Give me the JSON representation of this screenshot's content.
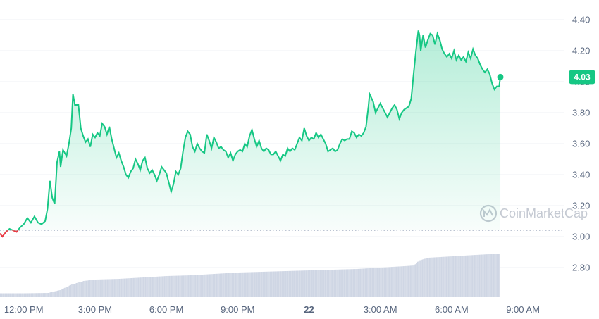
{
  "chart_data": {
    "type": "area",
    "y_ticks": [
      "4.40",
      "4.20",
      "4.00",
      "3.80",
      "3.60",
      "3.40",
      "3.20",
      "3.00",
      "2.80"
    ],
    "ylim": [
      2.6,
      4.5
    ],
    "x_ticks": [
      {
        "label": "12:00 PM",
        "t": 1.0
      },
      {
        "label": "3:00 PM",
        "t": 4.0
      },
      {
        "label": "6:00 PM",
        "t": 7.0
      },
      {
        "label": "9:00 PM",
        "t": 10.0
      },
      {
        "label": "22",
        "t": 13.0
      },
      {
        "label": "3:00 AM",
        "t": 16.0
      },
      {
        "label": "6:00 AM",
        "t": 19.0
      },
      {
        "label": "9:00 AM",
        "t": 22.0
      }
    ],
    "xlim": [
      0.0,
      25.2
    ],
    "baseline_price": 3.04,
    "current_price": "4.03",
    "colors": {
      "up": "#16c784",
      "down": "#ea3943",
      "volume": "#cfd6e4",
      "badge": "#16c784"
    },
    "price": [
      {
        "t": 0.0,
        "v": 3.02
      },
      {
        "t": 0.1,
        "v": 3.0
      },
      {
        "t": 0.25,
        "v": 3.03
      },
      {
        "t": 0.4,
        "v": 3.05
      },
      {
        "t": 0.55,
        "v": 3.04
      },
      {
        "t": 0.7,
        "v": 3.03
      },
      {
        "t": 0.85,
        "v": 3.06
      },
      {
        "t": 1.0,
        "v": 3.08
      },
      {
        "t": 1.15,
        "v": 3.12
      },
      {
        "t": 1.3,
        "v": 3.09
      },
      {
        "t": 1.45,
        "v": 3.13
      },
      {
        "t": 1.6,
        "v": 3.09
      },
      {
        "t": 1.75,
        "v": 3.08
      },
      {
        "t": 1.9,
        "v": 3.1
      },
      {
        "t": 2.0,
        "v": 3.18
      },
      {
        "t": 2.1,
        "v": 3.36
      },
      {
        "t": 2.2,
        "v": 3.25
      },
      {
        "t": 2.3,
        "v": 3.21
      },
      {
        "t": 2.4,
        "v": 3.48
      },
      {
        "t": 2.5,
        "v": 3.55
      },
      {
        "t": 2.55,
        "v": 3.45
      },
      {
        "t": 2.65,
        "v": 3.56
      },
      {
        "t": 2.8,
        "v": 3.52
      },
      {
        "t": 2.9,
        "v": 3.6
      },
      {
        "t": 3.0,
        "v": 3.7
      },
      {
        "t": 3.07,
        "v": 3.92
      },
      {
        "t": 3.15,
        "v": 3.85
      },
      {
        "t": 3.3,
        "v": 3.85
      },
      {
        "t": 3.4,
        "v": 3.7
      },
      {
        "t": 3.5,
        "v": 3.65
      },
      {
        "t": 3.6,
        "v": 3.61
      },
      {
        "t": 3.7,
        "v": 3.63
      },
      {
        "t": 3.8,
        "v": 3.58
      },
      {
        "t": 3.9,
        "v": 3.66
      },
      {
        "t": 4.0,
        "v": 3.64
      },
      {
        "t": 4.1,
        "v": 3.67
      },
      {
        "t": 4.2,
        "v": 3.65
      },
      {
        "t": 4.3,
        "v": 3.73
      },
      {
        "t": 4.4,
        "v": 3.71
      },
      {
        "t": 4.5,
        "v": 3.66
      },
      {
        "t": 4.6,
        "v": 3.71
      },
      {
        "t": 4.7,
        "v": 3.63
      },
      {
        "t": 4.8,
        "v": 3.57
      },
      {
        "t": 4.9,
        "v": 3.51
      },
      {
        "t": 5.0,
        "v": 3.54
      },
      {
        "t": 5.1,
        "v": 3.49
      },
      {
        "t": 5.2,
        "v": 3.45
      },
      {
        "t": 5.3,
        "v": 3.4
      },
      {
        "t": 5.4,
        "v": 3.38
      },
      {
        "t": 5.5,
        "v": 3.42
      },
      {
        "t": 5.6,
        "v": 3.44
      },
      {
        "t": 5.7,
        "v": 3.5
      },
      {
        "t": 5.8,
        "v": 3.47
      },
      {
        "t": 5.9,
        "v": 3.43
      },
      {
        "t": 6.0,
        "v": 3.49
      },
      {
        "t": 6.1,
        "v": 3.51
      },
      {
        "t": 6.2,
        "v": 3.44
      },
      {
        "t": 6.3,
        "v": 3.41
      },
      {
        "t": 6.4,
        "v": 3.43
      },
      {
        "t": 6.5,
        "v": 3.4
      },
      {
        "t": 6.6,
        "v": 3.36
      },
      {
        "t": 6.7,
        "v": 3.4
      },
      {
        "t": 6.8,
        "v": 3.45
      },
      {
        "t": 6.9,
        "v": 3.43
      },
      {
        "t": 7.0,
        "v": 3.41
      },
      {
        "t": 7.1,
        "v": 3.35
      },
      {
        "t": 7.2,
        "v": 3.29
      },
      {
        "t": 7.3,
        "v": 3.34
      },
      {
        "t": 7.4,
        "v": 3.42
      },
      {
        "t": 7.5,
        "v": 3.4
      },
      {
        "t": 7.6,
        "v": 3.44
      },
      {
        "t": 7.7,
        "v": 3.55
      },
      {
        "t": 7.8,
        "v": 3.64
      },
      {
        "t": 7.9,
        "v": 3.68
      },
      {
        "t": 8.0,
        "v": 3.66
      },
      {
        "t": 8.1,
        "v": 3.58
      },
      {
        "t": 8.2,
        "v": 3.55
      },
      {
        "t": 8.3,
        "v": 3.6
      },
      {
        "t": 8.4,
        "v": 3.57
      },
      {
        "t": 8.5,
        "v": 3.55
      },
      {
        "t": 8.6,
        "v": 3.54
      },
      {
        "t": 8.7,
        "v": 3.66
      },
      {
        "t": 8.8,
        "v": 3.62
      },
      {
        "t": 8.9,
        "v": 3.57
      },
      {
        "t": 9.0,
        "v": 3.64
      },
      {
        "t": 9.1,
        "v": 3.61
      },
      {
        "t": 9.2,
        "v": 3.57
      },
      {
        "t": 9.3,
        "v": 3.58
      },
      {
        "t": 9.4,
        "v": 3.56
      },
      {
        "t": 9.5,
        "v": 3.55
      },
      {
        "t": 9.6,
        "v": 3.51
      },
      {
        "t": 9.7,
        "v": 3.54
      },
      {
        "t": 9.8,
        "v": 3.49
      },
      {
        "t": 9.9,
        "v": 3.53
      },
      {
        "t": 10.0,
        "v": 3.55
      },
      {
        "t": 10.1,
        "v": 3.56
      },
      {
        "t": 10.2,
        "v": 3.55
      },
      {
        "t": 10.3,
        "v": 3.6
      },
      {
        "t": 10.4,
        "v": 3.58
      },
      {
        "t": 10.5,
        "v": 3.65
      },
      {
        "t": 10.6,
        "v": 3.69
      },
      {
        "t": 10.7,
        "v": 3.63
      },
      {
        "t": 10.8,
        "v": 3.58
      },
      {
        "t": 10.9,
        "v": 3.62
      },
      {
        "t": 11.0,
        "v": 3.57
      },
      {
        "t": 11.1,
        "v": 3.55
      },
      {
        "t": 11.2,
        "v": 3.57
      },
      {
        "t": 11.3,
        "v": 3.56
      },
      {
        "t": 11.4,
        "v": 3.53
      },
      {
        "t": 11.5,
        "v": 3.53
      },
      {
        "t": 11.6,
        "v": 3.55
      },
      {
        "t": 11.7,
        "v": 3.52
      },
      {
        "t": 11.8,
        "v": 3.49
      },
      {
        "t": 11.9,
        "v": 3.53
      },
      {
        "t": 12.0,
        "v": 3.52
      },
      {
        "t": 12.1,
        "v": 3.57
      },
      {
        "t": 12.2,
        "v": 3.55
      },
      {
        "t": 12.3,
        "v": 3.57
      },
      {
        "t": 12.4,
        "v": 3.56
      },
      {
        "t": 12.5,
        "v": 3.6
      },
      {
        "t": 12.6,
        "v": 3.64
      },
      {
        "t": 12.7,
        "v": 3.62
      },
      {
        "t": 12.8,
        "v": 3.7
      },
      {
        "t": 12.9,
        "v": 3.65
      },
      {
        "t": 13.0,
        "v": 3.62
      },
      {
        "t": 13.1,
        "v": 3.64
      },
      {
        "t": 13.2,
        "v": 3.63
      },
      {
        "t": 13.3,
        "v": 3.67
      },
      {
        "t": 13.4,
        "v": 3.64
      },
      {
        "t": 13.5,
        "v": 3.66
      },
      {
        "t": 13.6,
        "v": 3.63
      },
      {
        "t": 13.7,
        "v": 3.6
      },
      {
        "t": 13.8,
        "v": 3.55
      },
      {
        "t": 13.9,
        "v": 3.56
      },
      {
        "t": 14.0,
        "v": 3.57
      },
      {
        "t": 14.1,
        "v": 3.55
      },
      {
        "t": 14.2,
        "v": 3.56
      },
      {
        "t": 14.3,
        "v": 3.6
      },
      {
        "t": 14.4,
        "v": 3.63
      },
      {
        "t": 14.5,
        "v": 3.62
      },
      {
        "t": 14.6,
        "v": 3.63
      },
      {
        "t": 14.7,
        "v": 3.63
      },
      {
        "t": 14.8,
        "v": 3.68
      },
      {
        "t": 14.9,
        "v": 3.67
      },
      {
        "t": 15.0,
        "v": 3.64
      },
      {
        "t": 15.1,
        "v": 3.66
      },
      {
        "t": 15.2,
        "v": 3.65
      },
      {
        "t": 15.3,
        "v": 3.67
      },
      {
        "t": 15.4,
        "v": 3.71
      },
      {
        "t": 15.5,
        "v": 3.84
      },
      {
        "t": 15.55,
        "v": 3.92
      },
      {
        "t": 15.7,
        "v": 3.87
      },
      {
        "t": 15.8,
        "v": 3.8
      },
      {
        "t": 15.9,
        "v": 3.83
      },
      {
        "t": 16.0,
        "v": 3.86
      },
      {
        "t": 16.1,
        "v": 3.83
      },
      {
        "t": 16.2,
        "v": 3.8
      },
      {
        "t": 16.3,
        "v": 3.77
      },
      {
        "t": 16.4,
        "v": 3.8
      },
      {
        "t": 16.5,
        "v": 3.83
      },
      {
        "t": 16.6,
        "v": 3.85
      },
      {
        "t": 16.7,
        "v": 3.82
      },
      {
        "t": 16.8,
        "v": 3.76
      },
      {
        "t": 16.9,
        "v": 3.8
      },
      {
        "t": 17.0,
        "v": 3.82
      },
      {
        "t": 17.1,
        "v": 3.83
      },
      {
        "t": 17.2,
        "v": 3.84
      },
      {
        "t": 17.3,
        "v": 3.89
      },
      {
        "t": 17.4,
        "v": 4.05
      },
      {
        "t": 17.5,
        "v": 4.2
      },
      {
        "t": 17.6,
        "v": 4.33
      },
      {
        "t": 17.65,
        "v": 4.3
      },
      {
        "t": 17.7,
        "v": 4.2
      },
      {
        "t": 17.8,
        "v": 4.3
      },
      {
        "t": 17.9,
        "v": 4.22
      },
      {
        "t": 18.0,
        "v": 4.27
      },
      {
        "t": 18.1,
        "v": 4.31
      },
      {
        "t": 18.2,
        "v": 4.3
      },
      {
        "t": 18.3,
        "v": 4.24
      },
      {
        "t": 18.4,
        "v": 4.31
      },
      {
        "t": 18.5,
        "v": 4.27
      },
      {
        "t": 18.6,
        "v": 4.21
      },
      {
        "t": 18.7,
        "v": 4.18
      },
      {
        "t": 18.8,
        "v": 4.16
      },
      {
        "t": 18.9,
        "v": 4.18
      },
      {
        "t": 19.0,
        "v": 4.15
      },
      {
        "t": 19.1,
        "v": 4.2
      },
      {
        "t": 19.2,
        "v": 4.14
      },
      {
        "t": 19.3,
        "v": 4.17
      },
      {
        "t": 19.4,
        "v": 4.14
      },
      {
        "t": 19.5,
        "v": 4.16
      },
      {
        "t": 19.6,
        "v": 4.13
      },
      {
        "t": 19.7,
        "v": 4.19
      },
      {
        "t": 19.8,
        "v": 4.15
      },
      {
        "t": 19.9,
        "v": 4.21
      },
      {
        "t": 20.0,
        "v": 4.17
      },
      {
        "t": 20.1,
        "v": 4.15
      },
      {
        "t": 20.2,
        "v": 4.11
      },
      {
        "t": 20.3,
        "v": 4.08
      },
      {
        "t": 20.4,
        "v": 4.06
      },
      {
        "t": 20.5,
        "v": 4.08
      },
      {
        "t": 20.6,
        "v": 4.05
      },
      {
        "t": 20.7,
        "v": 3.99
      },
      {
        "t": 20.8,
        "v": 3.95
      },
      {
        "t": 20.9,
        "v": 3.97
      },
      {
        "t": 21.0,
        "v": 3.97
      },
      {
        "t": 21.05,
        "v": 4.03
      }
    ],
    "volume": [
      {
        "t": 0.0,
        "v": 0.055
      },
      {
        "t": 1.0,
        "v": 0.055
      },
      {
        "t": 2.0,
        "v": 0.06
      },
      {
        "t": 2.5,
        "v": 0.1
      },
      {
        "t": 3.0,
        "v": 0.18
      },
      {
        "t": 3.5,
        "v": 0.23
      },
      {
        "t": 4.0,
        "v": 0.25
      },
      {
        "t": 5.0,
        "v": 0.26
      },
      {
        "t": 6.0,
        "v": 0.28
      },
      {
        "t": 7.0,
        "v": 0.3
      },
      {
        "t": 8.0,
        "v": 0.31
      },
      {
        "t": 9.0,
        "v": 0.33
      },
      {
        "t": 10.0,
        "v": 0.35
      },
      {
        "t": 11.0,
        "v": 0.36
      },
      {
        "t": 12.0,
        "v": 0.37
      },
      {
        "t": 13.0,
        "v": 0.38
      },
      {
        "t": 14.0,
        "v": 0.39
      },
      {
        "t": 15.0,
        "v": 0.4
      },
      {
        "t": 16.0,
        "v": 0.42
      },
      {
        "t": 17.0,
        "v": 0.44
      },
      {
        "t": 17.4,
        "v": 0.45
      },
      {
        "t": 17.6,
        "v": 0.52
      },
      {
        "t": 18.0,
        "v": 0.56
      },
      {
        "t": 19.0,
        "v": 0.58
      },
      {
        "t": 20.0,
        "v": 0.6
      },
      {
        "t": 21.05,
        "v": 0.62
      }
    ],
    "watermark": "CoinMarketCap"
  }
}
